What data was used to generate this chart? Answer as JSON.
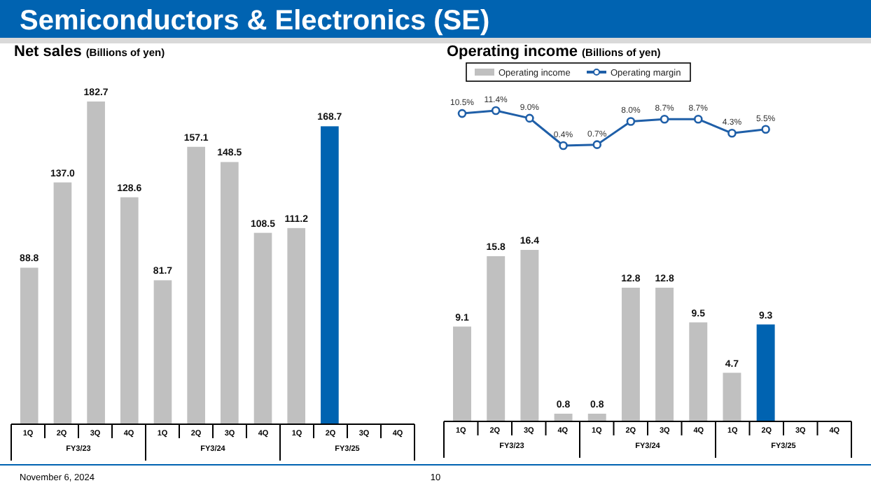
{
  "chart_data": [
    {
      "type": "bar",
      "title": "Net sales",
      "subtitle": "(Billions of yen)",
      "categories": [
        "1Q",
        "2Q",
        "3Q",
        "4Q",
        "1Q",
        "2Q",
        "3Q",
        "4Q",
        "1Q",
        "2Q",
        "3Q",
        "4Q"
      ],
      "series": [
        {
          "type": "bar",
          "colors": [
            "#c0c0c0",
            "#c0c0c0",
            "#c0c0c0",
            "#c0c0c0",
            "#c0c0c0",
            "#c0c0c0",
            "#c0c0c0",
            "#c0c0c0",
            "#c0c0c0",
            "#0063b1",
            null,
            null
          ],
          "values": [
            88.8,
            137.0,
            182.7,
            128.6,
            81.7,
            157.1,
            148.5,
            108.5,
            111.2,
            168.7,
            null,
            null
          ],
          "value_labels": [
            "88.8",
            "137.0",
            "182.7",
            "128.6",
            "81.7",
            "157.1",
            "148.5",
            "108.5",
            "111.2",
            "168.7",
            null,
            null
          ]
        }
      ],
      "annotations": [
        "FY3/23",
        "FY3/24",
        "FY3/25",
        "Semiconductors & Electronics (SE)",
        "November 6, 2024",
        "10"
      ],
      "legend": false
    },
    {
      "type": "line",
      "title": "Operating income",
      "subtitle": "(Billions of yen)",
      "categories": [
        null,
        null,
        null,
        null,
        null,
        null,
        null,
        null,
        null,
        null,
        null,
        null
      ],
      "series": [
        {
          "type": "line",
          "name": "Operating margin",
          "color": "#1f5fa8",
          "marker": "circle",
          "values": [
            10.5,
            11.4,
            9.0,
            0.4,
            0.7,
            8.0,
            8.7,
            8.7,
            4.3,
            5.5,
            null,
            null
          ],
          "value_labels": [
            "10.5%",
            "11.4%",
            "9.0%",
            "0.4%",
            "0.7%",
            "8.0%",
            "8.7%",
            "8.7%",
            "4.3%",
            "5.5%",
            null,
            null
          ]
        }
      ],
      "legend": "top left"
    },
    {
      "type": "bar",
      "categories": [
        "1Q",
        "2Q",
        "3Q",
        "4Q",
        "1Q",
        "2Q",
        "3Q",
        "4Q",
        "1Q",
        "2Q",
        "3Q",
        "4Q"
      ],
      "series": [
        {
          "type": "bar",
          "name": "Operating income",
          "color": "#c0c0c0",
          "colors": [
            "#c0c0c0",
            "#c0c0c0",
            "#c0c0c0",
            "#c0c0c0",
            "#c0c0c0",
            "#c0c0c0",
            "#c0c0c0",
            "#c0c0c0",
            "#c0c0c0",
            "#0063b1",
            null,
            null
          ],
          "values": [
            9.1,
            15.8,
            16.4,
            0.8,
            0.8,
            12.8,
            12.8,
            9.5,
            4.7,
            9.3,
            null,
            null
          ],
          "value_labels": [
            "9.1",
            "15.8",
            "16.4",
            "0.8",
            "0.8",
            "12.8",
            "12.8",
            "9.5",
            "4.7",
            "9.3",
            null,
            null
          ]
        }
      ],
      "annotations": [
        "FY3/23",
        "FY3/24",
        "FY3/25"
      ],
      "legend": "top left"
    }
  ]
}
